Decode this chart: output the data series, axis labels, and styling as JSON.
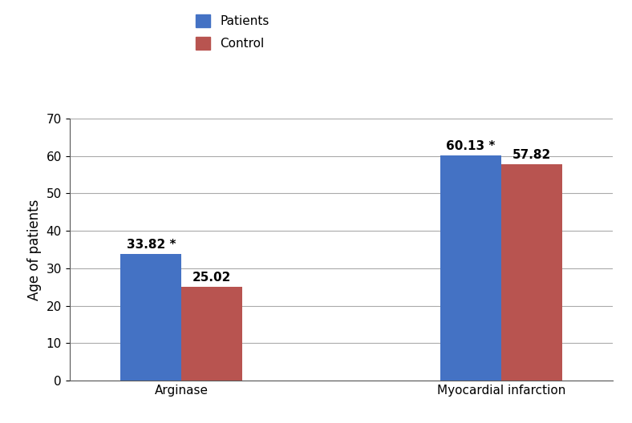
{
  "categories": [
    "Arginase",
    "Myocardial infarction"
  ],
  "patients_values": [
    33.82,
    60.13
  ],
  "control_values": [
    25.02,
    57.82
  ],
  "patients_labels": [
    "33.82 *",
    "60.13 *"
  ],
  "control_labels": [
    "25.02",
    "57.82"
  ],
  "patients_color": "#4472C4",
  "control_color": "#B85450",
  "ylabel": "Age of patients",
  "ylim": [
    0,
    70
  ],
  "yticks": [
    0,
    10,
    20,
    30,
    40,
    50,
    60,
    70
  ],
  "legend_patients": "Patients",
  "legend_control": "Control",
  "bar_width": 0.38,
  "background_color": "#ffffff",
  "grid_color": "#aaaaaa",
  "label_fontsize": 11,
  "tick_fontsize": 11,
  "legend_fontsize": 11,
  "ylabel_fontsize": 12
}
